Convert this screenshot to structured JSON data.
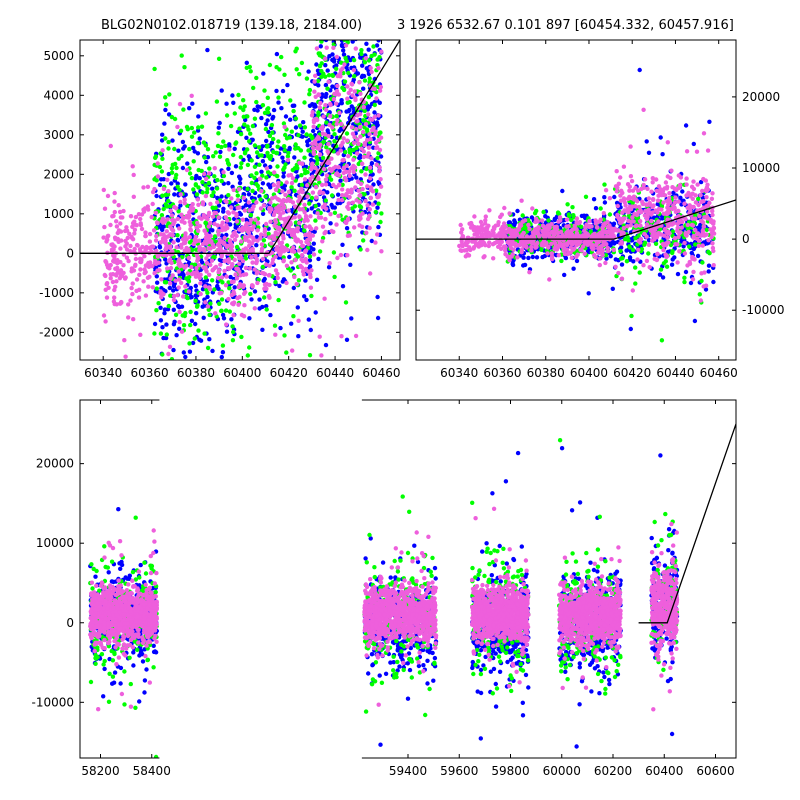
{
  "titles": {
    "left": "BLG02N0102.018719 (139.18, 2184.00)",
    "right": "3 1926 6532.67 0.101 897 [60454.332, 60457.916]"
  },
  "colors": {
    "blue": "#0000ff",
    "green": "#00ff00",
    "pink": "#ee5fdc",
    "fit": "#000000"
  },
  "chart_data": [
    {
      "name": "zoomed-light-curve",
      "type": "scatter",
      "xlim": [
        60330,
        60468
      ],
      "ylim": [
        -2700,
        5400
      ],
      "xticks": [
        60340,
        60360,
        60380,
        60400,
        60420,
        60440,
        60460
      ],
      "yticks": [
        -2000,
        -1000,
        0,
        1000,
        2000,
        3000,
        4000,
        5000
      ],
      "yaxis": "left",
      "series": [
        {
          "color": "blue",
          "segments": [
            [
              60362,
              60400,
              150,
              1400,
              450
            ],
            [
              60400,
              60430,
              1200,
              1500,
              320
            ],
            [
              60430,
              60460,
              3200,
              1600,
              420
            ]
          ]
        },
        {
          "color": "green",
          "segments": [
            [
              60362,
              60400,
              800,
              1700,
              300
            ],
            [
              60400,
              60430,
              2000,
              1600,
              240
            ],
            [
              60430,
              60460,
              3500,
              1700,
              260
            ]
          ]
        },
        {
          "color": "pink",
          "segments": [
            [
              60340,
              60412,
              100,
              700,
              700
            ],
            [
              60412,
              60430,
              700,
              700,
              200
            ],
            [
              60430,
              60460,
              2500,
              1500,
              320
            ]
          ]
        }
      ],
      "fit": [
        [
          60330,
          0
        ],
        [
          60411.5,
          0
        ],
        [
          60468,
          5400
        ]
      ]
    },
    {
      "name": "wide-light-curve",
      "type": "scatter",
      "xlim": [
        60320,
        60468
      ],
      "ylim": [
        -17000,
        28000
      ],
      "xticks": [
        60340,
        60360,
        60380,
        60400,
        60420,
        60440,
        60460
      ],
      "xticklabels": [
        "60340",
        "60360",
        "60380",
        "60400",
        "60420",
        "60440",
        "60460"
      ],
      "yticks": [
        -10000,
        0,
        10000,
        20000
      ],
      "yaxis": "right",
      "series": [
        {
          "color": "blue",
          "segments": [
            [
              60362,
              60412,
              200,
              1500,
              380
            ],
            [
              60412,
              60458,
              1500,
              3000,
              320
            ]
          ]
        },
        {
          "color": "green",
          "segments": [
            [
              60362,
              60412,
              500,
              1500,
              200
            ],
            [
              60412,
              60458,
              1500,
              3000,
              160
            ]
          ]
        },
        {
          "color": "pink",
          "segments": [
            [
              60340,
              60412,
              200,
              1200,
              550
            ],
            [
              60412,
              60458,
              3000,
              3200,
              380
            ]
          ]
        }
      ],
      "fit": [
        [
          60320,
          0
        ],
        [
          60411.5,
          0
        ],
        [
          60468,
          5500
        ]
      ]
    },
    {
      "name": "full-light-curve",
      "type": "scatter",
      "xlim": [
        58120,
        60680
      ],
      "ylim": [
        -17000,
        28000
      ],
      "xticks": [
        58200,
        58400,
        59400,
        59600,
        59800,
        60000,
        60200,
        60400,
        60600
      ],
      "yticks": [
        -10000,
        0,
        10000,
        20000
      ],
      "yaxis": "left",
      "axis_break": [
        58430,
        59220
      ],
      "series": [
        {
          "color": "blue",
          "segments": [
            [
              58160,
              58420,
              500,
              2800,
              380
            ],
            [
              59230,
              59510,
              0,
              2800,
              380
            ],
            [
              59650,
              59870,
              -300,
              3000,
              420
            ],
            [
              59990,
              60230,
              200,
              3000,
              380
            ],
            [
              60350,
              60450,
              2500,
              3500,
              200
            ]
          ]
        },
        {
          "color": "green",
          "segments": [
            [
              58160,
              58420,
              600,
              3200,
              230
            ],
            [
              59230,
              59510,
              700,
              3500,
              230
            ],
            [
              59650,
              59870,
              800,
              3500,
              230
            ],
            [
              59990,
              60230,
              800,
              3500,
              230
            ],
            [
              60350,
              60450,
              2500,
              3500,
              100
            ]
          ]
        },
        {
          "color": "pink",
          "segments": [
            [
              58160,
              58420,
              1000,
              1700,
              900
            ],
            [
              59230,
              59510,
              1000,
              1700,
              900
            ],
            [
              59650,
              59870,
              1100,
              1700,
              850
            ],
            [
              59990,
              60230,
              1000,
              1700,
              850
            ],
            [
              60350,
              60450,
              2000,
              2500,
              350
            ]
          ]
        }
      ],
      "fit": [
        [
          60300,
          0
        ],
        [
          60411.5,
          0
        ],
        [
          60680,
          25000
        ]
      ]
    }
  ]
}
